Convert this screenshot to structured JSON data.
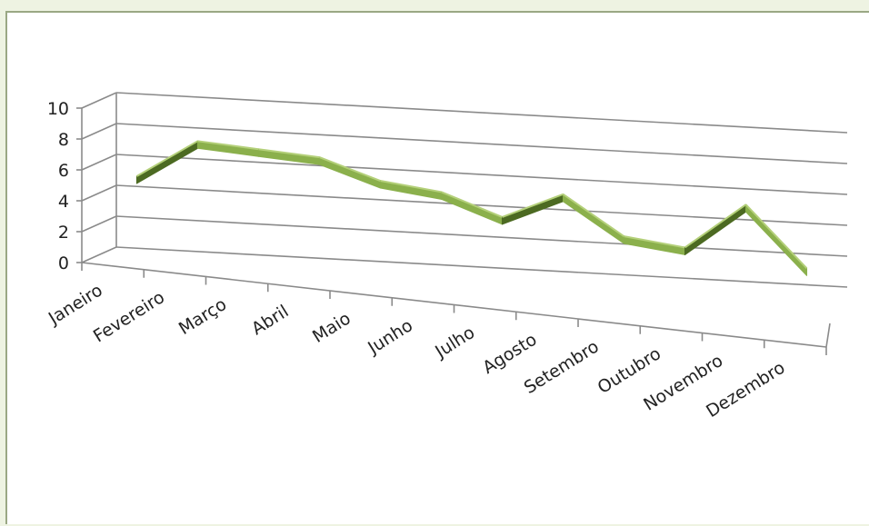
{
  "chart_data": {
    "type": "line",
    "categories": [
      "Janeiro",
      "Fevereiro",
      "Março",
      "Abril",
      "Maio",
      "Junho",
      "Julho",
      "Agosto",
      "Setembro",
      "Outubro",
      "Novembro",
      "Dezembro"
    ],
    "series": [
      {
        "values": [
          5.2,
          7.8,
          7.6,
          7.4,
          6.2,
          5.8,
          4.5,
          6.3,
          3.9,
          3.5,
          6.6,
          2.8
        ]
      }
    ],
    "y_ticks": [
      "0",
      "2",
      "4",
      "6",
      "8",
      "10"
    ],
    "ylim": [
      0,
      10
    ],
    "title": "",
    "xlabel": "",
    "ylabel": "",
    "grid": true,
    "legend": "none",
    "perspective": "3d-line",
    "colors": {
      "line_face": "#8bb04c",
      "line_dark": "#4c6a22",
      "line_light": "#b4d07a",
      "grid": "#8a8a8a"
    }
  }
}
